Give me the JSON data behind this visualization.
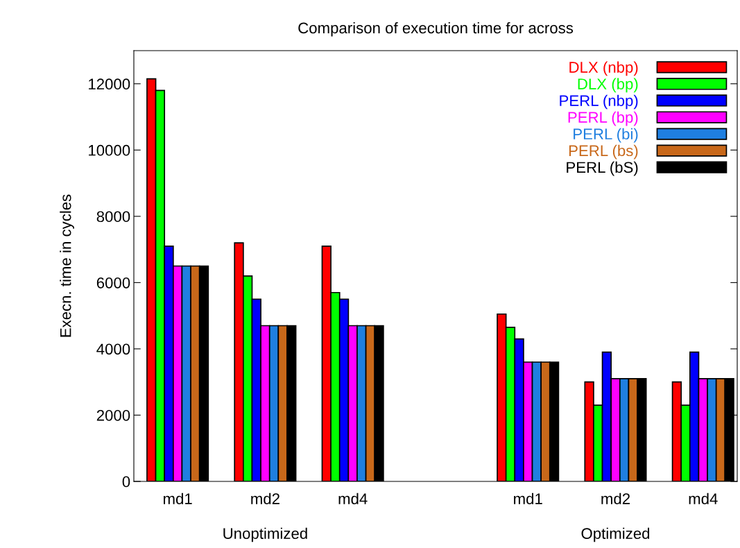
{
  "chart_data": {
    "type": "bar",
    "title": "Comparison of execution time for across",
    "ylabel": "Execn. time in cycles",
    "categories": [
      "md1",
      "md2",
      "md4",
      null,
      "md1",
      "md2",
      "md4"
    ],
    "annotations": [
      "Unoptimized",
      "Optimized"
    ],
    "series": [
      {
        "name": "DLX (nbp)",
        "color": "#ff0000",
        "values": [
          12150,
          7200,
          7100,
          null,
          5050,
          3000,
          3000
        ]
      },
      {
        "name": "DLX (bp)",
        "color": "#00ff00",
        "values": [
          11800,
          6200,
          5700,
          null,
          4650,
          2300,
          2300
        ]
      },
      {
        "name": "PERL (nbp)",
        "color": "#0000ff",
        "values": [
          7100,
          5500,
          5500,
          null,
          4300,
          3900,
          3900
        ]
      },
      {
        "name": "PERL (bp)",
        "color": "#ff00ff",
        "values": [
          6500,
          4700,
          4700,
          null,
          3600,
          3100,
          3100
        ]
      },
      {
        "name": "PERL (bi)",
        "color": "#1f7fe0",
        "values": [
          6500,
          4700,
          4700,
          null,
          3600,
          3100,
          3100
        ]
      },
      {
        "name": "PERL (bs)",
        "color": "#c8681a",
        "values": [
          6500,
          4700,
          4700,
          null,
          3600,
          3100,
          3100
        ]
      },
      {
        "name": "PERL (bS)",
        "color": "#000000",
        "values": [
          6500,
          4700,
          4700,
          null,
          3600,
          3100,
          3100
        ]
      }
    ],
    "ylim": [
      0,
      13000
    ],
    "yticks": [
      0,
      2000,
      4000,
      6000,
      8000,
      10000,
      12000
    ],
    "grid": false,
    "legend": "top right"
  }
}
